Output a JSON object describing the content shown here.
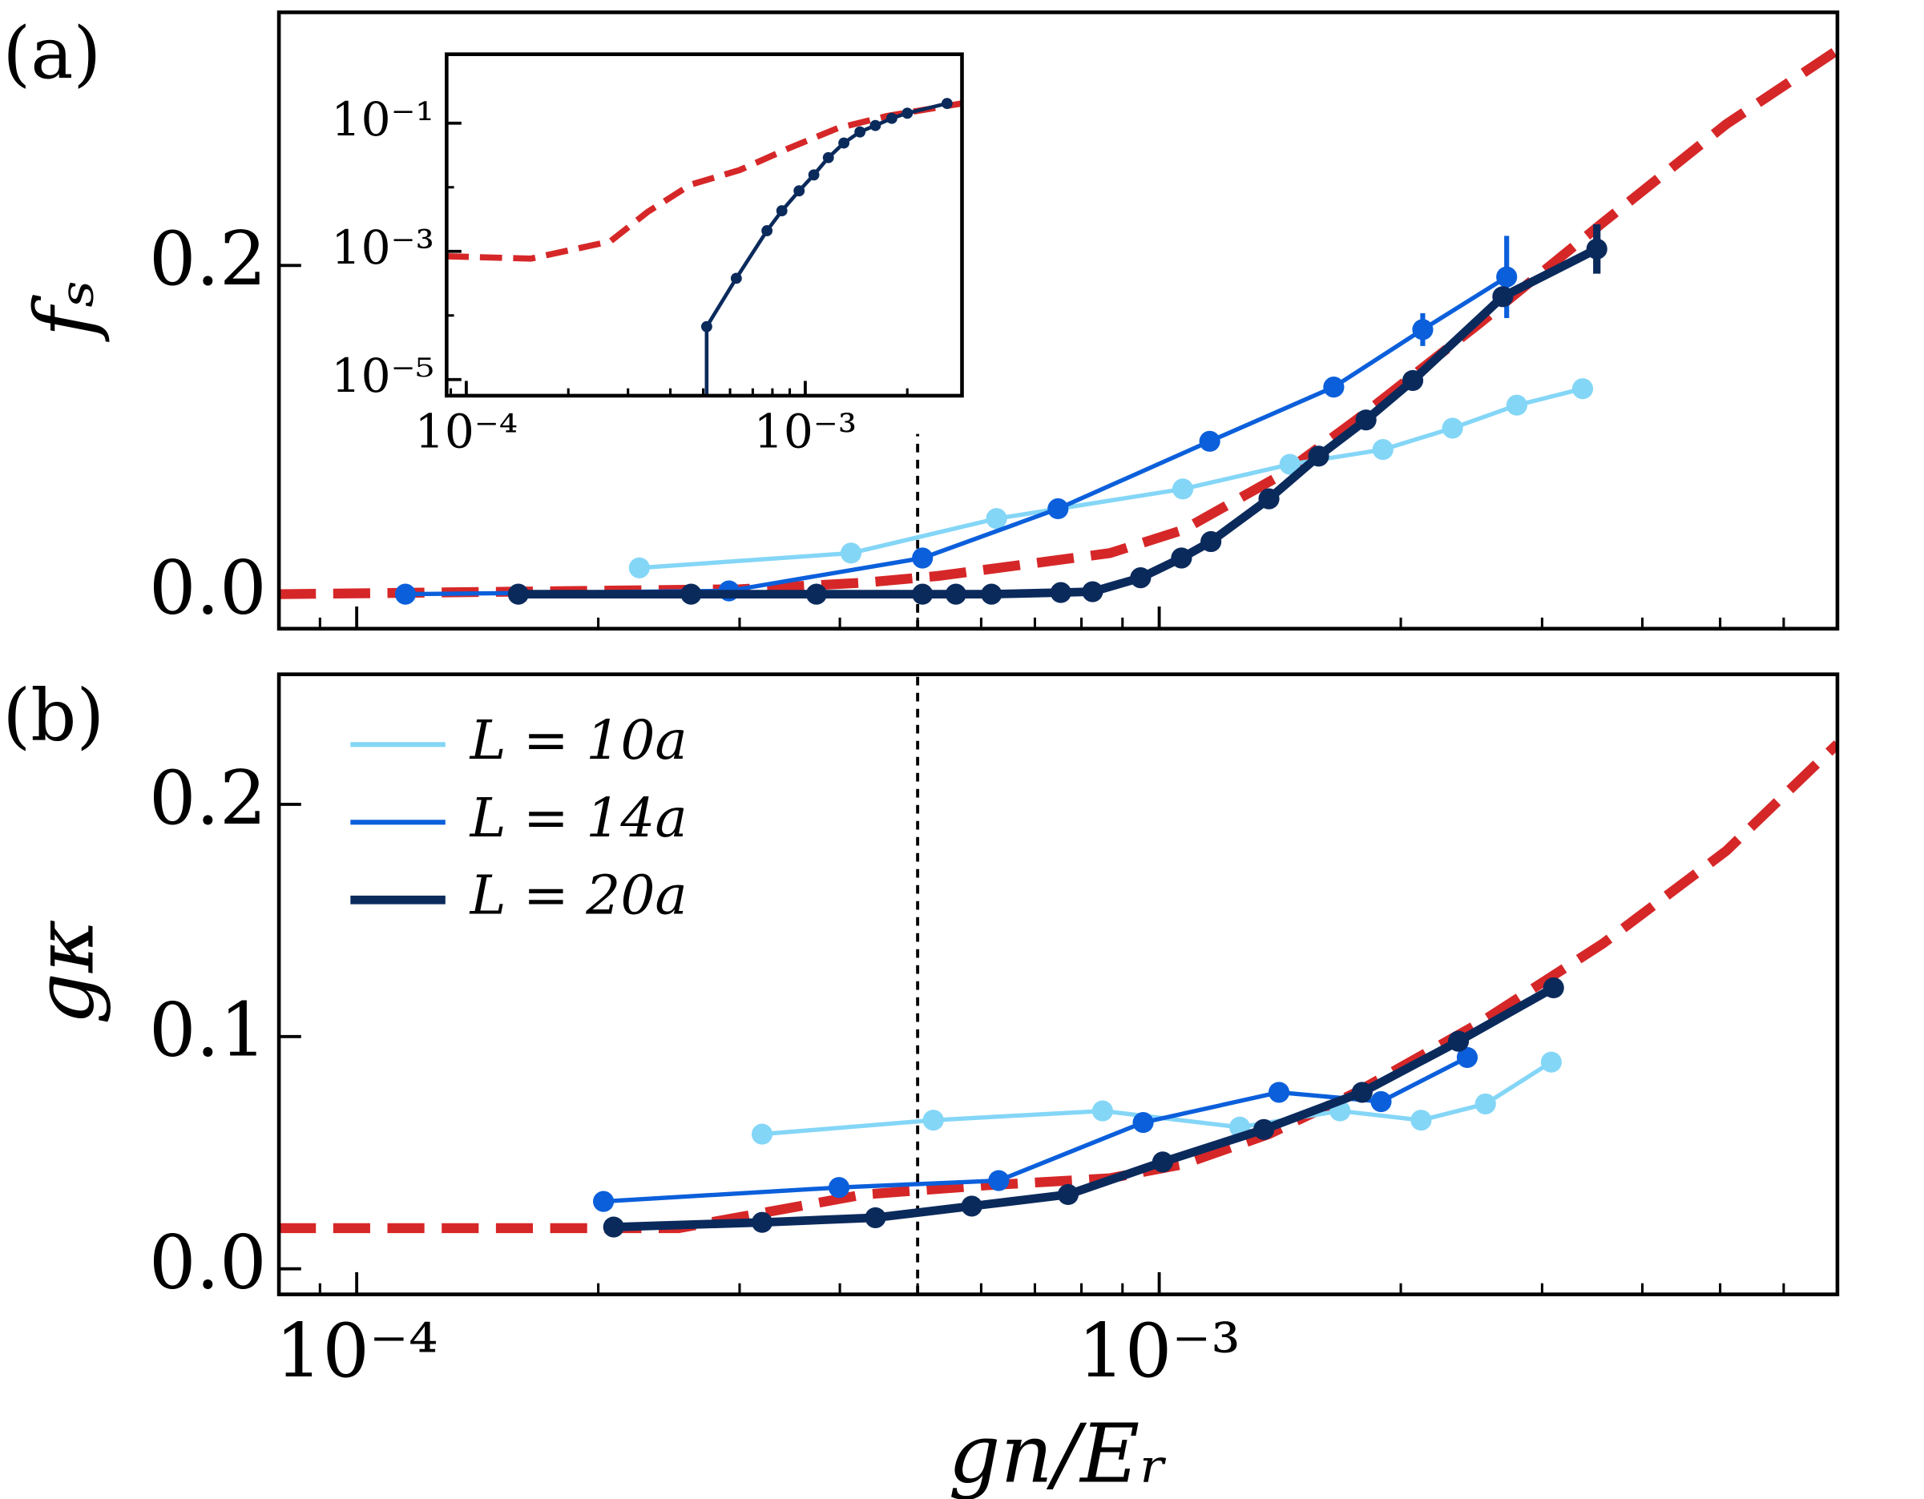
{
  "chart_data": [
    {
      "type": "line",
      "panel_label": "(a)",
      "ylabel": "fₛ",
      "xlog": true,
      "xlim": [
        8e-05,
        0.007
      ],
      "xticks": [
        0.0001,
        0.001
      ],
      "show_xtick_labels": false,
      "xminorticks": [
        9e-05,
        0.0002,
        0.0003,
        0.0004,
        0.0005,
        0.0006,
        0.0007,
        0.0008,
        0.0009,
        0.002,
        0.003,
        0.004,
        0.005,
        0.006
      ],
      "ylim": [
        -0.021,
        0.354
      ],
      "yticks": [
        {
          "value": 0,
          "label": "0.0"
        },
        {
          "value": 0.2,
          "label": "0.2"
        }
      ],
      "vline": 0.0005,
      "series": [
        {
          "color": "#d62728",
          "dashed": true,
          "x": [
            8e-05,
            0.0003,
            0.000428,
            0.000529,
            0.000678,
            0.000868,
            0.00107,
            0.001424,
            0.00176,
            0.00251,
            0.00357,
            0.00509,
            0.007
          ],
          "values": [
            0,
            0.003,
            0.007,
            0.011,
            0.018,
            0.025,
            0.039,
            0.073,
            0.106,
            0.165,
            0.226,
            0.286,
            0.331
          ]
        },
        {
          "color": "#84d6f7",
          "markers": true,
          "x": [
            0.000225,
            0.000413,
            0.000627,
            0.00107,
            0.001455,
            0.0019,
            0.00232,
            0.00279,
            0.00337
          ],
          "values": [
            0.016,
            0.025,
            0.046,
            0.064,
            0.079,
            0.088,
            0.101,
            0.115,
            0.125
          ],
          "errors": [
            null,
            null,
            null,
            null,
            null,
            null,
            0.006,
            null,
            null
          ]
        },
        {
          "color": "#0b5fdb",
          "markers": true,
          "x": [
            0.000115,
            0.000291,
            0.000507,
            0.000748,
            0.001156,
            0.00165,
            0.00213,
            0.00271
          ],
          "values": [
            0,
            0.002,
            0.022,
            0.052,
            0.093,
            0.126,
            0.161,
            0.193
          ],
          "errors": [
            null,
            null,
            null,
            null,
            null,
            null,
            0.01,
            0.025
          ]
        },
        {
          "color": "#0b2a5c",
          "markers": true,
          "thick": true,
          "x": [
            0.000159,
            0.000261,
            0.000374,
            0.000507,
            0.000558,
            0.000618,
            0.000754,
            0.000826,
            0.000948,
            0.001066,
            0.00116,
            0.00137,
            0.00158,
            0.00181,
            0.00207,
            0.00268,
            0.00351
          ],
          "values": [
            0,
            0,
            0,
            0,
            0,
            0,
            0.001,
            0.0015,
            0.01,
            0.022,
            0.032,
            0.058,
            0.084,
            0.106,
            0.13,
            0.181,
            0.21
          ],
          "errors": [
            null,
            null,
            null,
            null,
            null,
            null,
            null,
            null,
            null,
            null,
            null,
            null,
            null,
            null,
            null,
            null,
            0.015
          ]
        }
      ]
    },
    {
      "type": "line",
      "panel_label": "(b)",
      "ylabel": "gκ",
      "xlabel": "gn/Eᵣ",
      "xlog": true,
      "xlim": [
        8e-05,
        0.007
      ],
      "xticks": [
        {
          "value": 0.0001,
          "label": "10⁻⁴"
        },
        {
          "value": 0.001,
          "label": "10⁻³"
        }
      ],
      "show_xtick_labels": true,
      "xminorticks": [
        9e-05,
        0.0002,
        0.0003,
        0.0004,
        0.0005,
        0.0006,
        0.0007,
        0.0008,
        0.0009,
        0.002,
        0.003,
        0.004,
        0.005,
        0.006
      ],
      "ylim": [
        -0.011,
        0.256
      ],
      "yticks": [
        {
          "value": 0,
          "label": "0.0"
        },
        0.1,
        0.2
      ],
      "vline": 0.0005,
      "legend": "upper left",
      "series": [
        {
          "color": "#d62728",
          "dashed": true,
          "x": [
            8e-05,
            0.000252,
            0.000428,
            0.00061,
            0.000868,
            0.00107,
            0.00137,
            0.00176,
            0.00251,
            0.00357,
            0.00509,
            0.007
          ],
          "values": [
            0.0175,
            0.0175,
            0.032,
            0.036,
            0.039,
            0.045,
            0.058,
            0.076,
            0.106,
            0.14,
            0.18,
            0.226
          ]
        },
        {
          "name": "L = 10a",
          "color": "#84d6f7",
          "markers": true,
          "x": [
            0.00032,
            0.000523,
            0.00085,
            0.00126,
            0.00168,
            0.00212,
            0.00255,
            0.00308
          ],
          "values": [
            0.058,
            0.064,
            0.068,
            0.061,
            0.068,
            0.064,
            0.071,
            0.089
          ]
        },
        {
          "name": "L = 14a",
          "color": "#0b5fdb",
          "markers": true,
          "x": [
            0.000203,
            0.000399,
            0.000631,
            0.000955,
            0.00141,
            0.00189,
            0.00242
          ],
          "values": [
            0.029,
            0.035,
            0.038,
            0.063,
            0.076,
            0.072,
            0.091
          ]
        },
        {
          "name": "L = 20a",
          "color": "#0b2a5c",
          "markers": true,
          "thick": true,
          "x": [
            0.000209,
            0.00032,
            0.000443,
            0.000584,
            0.00077,
            0.00101,
            0.00135,
            0.00179,
            0.00236,
            0.0031
          ],
          "values": [
            0.018,
            0.02,
            0.022,
            0.027,
            0.032,
            0.046,
            0.06,
            0.076,
            0.098,
            0.121
          ]
        }
      ]
    },
    {
      "type": "line",
      "xlog": true,
      "ylog": true,
      "xlim": [
        8.75e-05,
        0.0029
      ],
      "xticks": [
        {
          "value": 0.0001,
          "label": "10⁻⁴"
        },
        {
          "value": 0.001,
          "label": "10⁻³"
        }
      ],
      "show_xtick_labels": true,
      "xminorticks": [
        9e-05,
        0.0002,
        0.0003,
        0.0004,
        0.0005,
        0.0006,
        0.0007,
        0.0008,
        0.0009,
        0.002
      ],
      "ylim": [
        5.6e-06,
        1.19
      ],
      "yticks": [
        {
          "value": 0.1,
          "label": "10⁻¹"
        },
        {
          "value": 0.001,
          "label": "10⁻³"
        },
        {
          "value": 1e-05,
          "label": "10⁻⁵"
        }
      ],
      "yminorticks": [
        0.01,
        0.0001
      ],
      "series": [
        {
          "color": "#d62728",
          "dashed": true,
          "x": [
            8.75e-05,
            0.000155,
            0.000266,
            0.000342,
            0.000459,
            0.000641,
            0.000897,
            0.00125,
            0.00175,
            0.0029
          ],
          "values": [
            0.00084,
            0.00077,
            0.00143,
            0.0041,
            0.011,
            0.0186,
            0.041,
            0.084,
            0.13,
            0.203
          ]
        },
        {
          "color": "#0b2a5c",
          "markers": true,
          "x": [
            0.000512,
            0.000512,
            0.000626,
            0.000771,
            0.000853,
            0.000959,
            0.00106,
            0.00117,
            0.0013,
            0.00145,
            0.00161,
            0.0018,
            0.002,
            0.00262
          ],
          "values": [
            0,
            6.7e-05,
            0.00038,
            0.0021,
            0.0043,
            0.0088,
            0.0156,
            0.029,
            0.049,
            0.073,
            0.092,
            0.119,
            0.143,
            0.203
          ]
        }
      ]
    }
  ]
}
